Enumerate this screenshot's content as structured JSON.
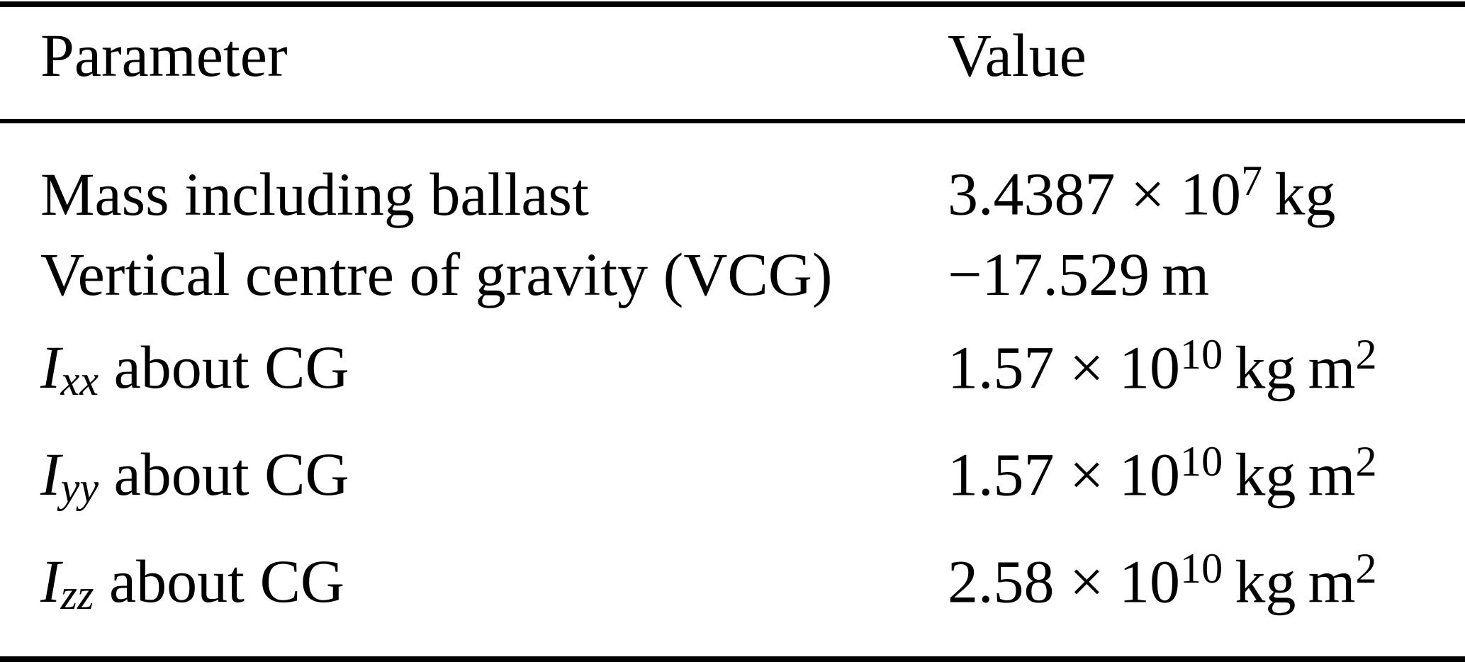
{
  "page": {
    "background": "#ffffff",
    "text_color": "#000000",
    "rule_color": "#000000"
  },
  "table": {
    "header": {
      "parameter": "Parameter",
      "value": "Value"
    },
    "rows": [
      {
        "parameter": [
          {
            "text": "Mass including ballast"
          }
        ],
        "value": [
          {
            "text": "3.4387 × 10"
          },
          {
            "text": "7",
            "style": "sup"
          },
          {
            "text": " kg"
          }
        ]
      },
      {
        "parameter": [
          {
            "text": "Vertical centre of gravity (VCG)"
          }
        ],
        "value": [
          {
            "text": "−17.529 m"
          }
        ]
      },
      {
        "parameter": [
          {
            "text": "I",
            "style": "var"
          },
          {
            "text": "xx",
            "style": "sub"
          },
          {
            "text": " about CG"
          }
        ],
        "value": [
          {
            "text": "1.57 × 10"
          },
          {
            "text": "10",
            "style": "sup"
          },
          {
            "text": " kg m"
          },
          {
            "text": "2",
            "style": "sup"
          }
        ]
      },
      {
        "parameter": [
          {
            "text": "I",
            "style": "var"
          },
          {
            "text": "yy",
            "style": "sub"
          },
          {
            "text": " about CG"
          }
        ],
        "value": [
          {
            "text": "1.57 × 10"
          },
          {
            "text": "10",
            "style": "sup"
          },
          {
            "text": " kg m"
          },
          {
            "text": "2",
            "style": "sup"
          }
        ]
      },
      {
        "parameter": [
          {
            "text": "I",
            "style": "var"
          },
          {
            "text": "zz",
            "style": "sub"
          },
          {
            "text": " about CG"
          }
        ],
        "value": [
          {
            "text": "2.58 × 10"
          },
          {
            "text": "10",
            "style": "sup"
          },
          {
            "text": " kg m"
          },
          {
            "text": "2",
            "style": "sup"
          }
        ]
      }
    ]
  }
}
